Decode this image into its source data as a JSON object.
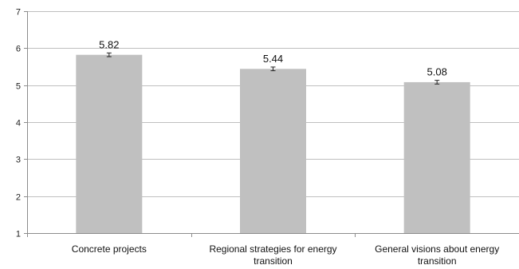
{
  "chart_data": {
    "type": "bar",
    "categories": [
      [
        "Concrete projects"
      ],
      [
        "Regional strategies for energy",
        "transition"
      ],
      [
        "General visions about energy",
        "transition"
      ]
    ],
    "values": [
      5.82,
      5.44,
      5.08
    ],
    "error": [
      0.05,
      0.05,
      0.05
    ],
    "data_labels": [
      "5.82",
      "5.44",
      "5.08"
    ],
    "ylim": [
      1,
      7
    ],
    "yticks": [
      1,
      2,
      3,
      4,
      5,
      6,
      7
    ],
    "title": "",
    "xlabel": "",
    "ylabel": "",
    "grid": true,
    "colors": {
      "bar": "#c0c0c0",
      "grid": "#bfbfbf",
      "axis": "#8c8c8c",
      "error": "#222222"
    }
  }
}
